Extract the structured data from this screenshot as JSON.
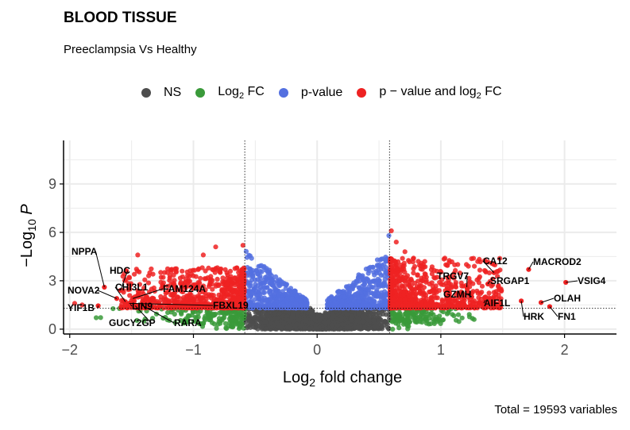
{
  "chart_data": {
    "type": "scatter",
    "title": "BLOOD TISSUE",
    "subtitle": "Preeclampsia Vs Healthy",
    "caption": "Total = 19593 variables",
    "xlim": [
      -2.05,
      2.42
    ],
    "ylim": [
      -0.3,
      11.7
    ],
    "x_ticks": [
      -2,
      -1,
      0,
      1,
      2
    ],
    "y_ticks": [
      0,
      3,
      6,
      9
    ],
    "fc_cutoff": 0.585,
    "p_cutoff_log10": 1.3,
    "legend": [
      {
        "key": "NS",
        "label": "NS",
        "color": "#4d4d4d"
      },
      {
        "key": "fc",
        "label_main": "Log",
        "label_sub": "2",
        "label_tail": " FC",
        "color": "#3a9a3a"
      },
      {
        "key": "p",
        "label": "p-value",
        "color": "#5470e0"
      },
      {
        "key": "both",
        "label_main": "p − value and log",
        "label_sub": "2",
        "label_tail": " FC",
        "color": "#ee2222"
      }
    ],
    "highlighted_genes": [
      {
        "gene": "NPPA",
        "x": -1.72,
        "y": 2.6
      },
      {
        "gene": "HDC",
        "x": -1.59,
        "y": 2.4
      },
      {
        "gene": "NOVA2",
        "x": -1.62,
        "y": 1.9
      },
      {
        "gene": "CHI3L1",
        "x": -1.55,
        "y": 1.7
      },
      {
        "gene": "FAM124A",
        "x": -1.49,
        "y": 1.9
      },
      {
        "gene": "YIF1B",
        "x": -1.77,
        "y": 1.45
      },
      {
        "gene": "LIN9",
        "x": -1.51,
        "y": 1.55
      },
      {
        "gene": "FBXL19",
        "x": -1.52,
        "y": 1.6
      },
      {
        "gene": "GUCY2GP",
        "x": -1.47,
        "y": 1.45
      },
      {
        "gene": "RARA",
        "x": -1.42,
        "y": 1.5
      },
      {
        "gene": "CA12",
        "x": 1.43,
        "y": 3.5
      },
      {
        "gene": "MACROD2",
        "x": 1.71,
        "y": 3.7
      },
      {
        "gene": "TRGV7",
        "x": 1.21,
        "y": 2.6
      },
      {
        "gene": "SRGAP1",
        "x": 1.38,
        "y": 2.8
      },
      {
        "gene": "VSIG4",
        "x": 2.01,
        "y": 2.9
      },
      {
        "gene": "GZMH",
        "x": 1.25,
        "y": 2.0
      },
      {
        "gene": "AIF1L",
        "x": 1.36,
        "y": 1.8
      },
      {
        "gene": "OLAH",
        "x": 1.81,
        "y": 1.65
      },
      {
        "gene": "HRK",
        "x": 1.65,
        "y": 1.75
      },
      {
        "gene": "FN1",
        "x": 1.88,
        "y": 1.4
      }
    ]
  }
}
